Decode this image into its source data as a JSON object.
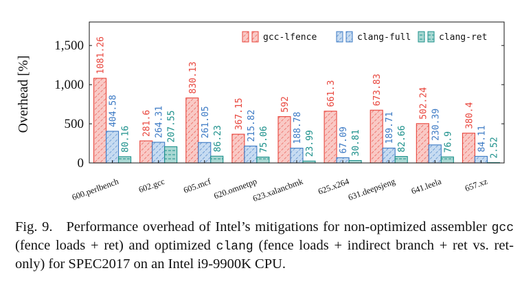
{
  "chart_data": {
    "type": "bar",
    "ylabel": "Overhead [%]",
    "ylim": [
      0,
      1800
    ],
    "yticks": [
      0,
      500,
      1000,
      1500
    ],
    "ytick_labels": [
      "0",
      "500",
      "1,000",
      "1,500"
    ],
    "legend_position": "top-right",
    "categories": [
      "600.perlbench",
      "602.gcc",
      "605.mcf",
      "620.omnetpp",
      "623.xalancbmk",
      "625.x264",
      "631.deepsjeng",
      "641.leela",
      "657.xz"
    ],
    "series": [
      {
        "name": "gcc-lfence",
        "color": "#e8453c",
        "fill": "#f9c9c5",
        "values": [
          1081.26,
          281.6,
          830.13,
          367.15,
          592,
          661.3,
          673.83,
          502.24,
          380.4
        ],
        "labels": [
          "1081.26",
          "281.6",
          "830.13",
          "367.15",
          "592",
          "661.3",
          "673.83",
          "502.24",
          "380.4"
        ]
      },
      {
        "name": "clang-full",
        "color": "#3b79c4",
        "fill": "#c6dbf1",
        "values": [
          404.58,
          264.31,
          261.05,
          215.82,
          188.78,
          67.09,
          189.71,
          230.39,
          84.11
        ],
        "labels": [
          "404.58",
          "264.31",
          "261.05",
          "215.82",
          "188.78",
          "67.09",
          "189.71",
          "230.39",
          "84.11"
        ]
      },
      {
        "name": "clang-ret",
        "color": "#1a8f8a",
        "fill": "#a9d8d3",
        "values": [
          80.16,
          207.55,
          86.23,
          75.06,
          23.99,
          30.81,
          82.66,
          76.9,
          2.52
        ],
        "labels": [
          "80.16",
          "207.55",
          "86.23",
          "75.06",
          "23.99",
          "30.81",
          "82.66",
          "76.9",
          "2.52"
        ]
      }
    ]
  },
  "caption": {
    "prefix": "Fig. 9.",
    "text1": "Performance overhead of Intel’s mitigations for non-optimized assembler ",
    "code1": "gcc",
    "text2": " (fence loads + ret) and optimized ",
    "code2": "clang",
    "text3": " (fence loads + indirect branch + ret vs. ret-only) for SPEC2017 on an Intel i9-9900K CPU."
  }
}
